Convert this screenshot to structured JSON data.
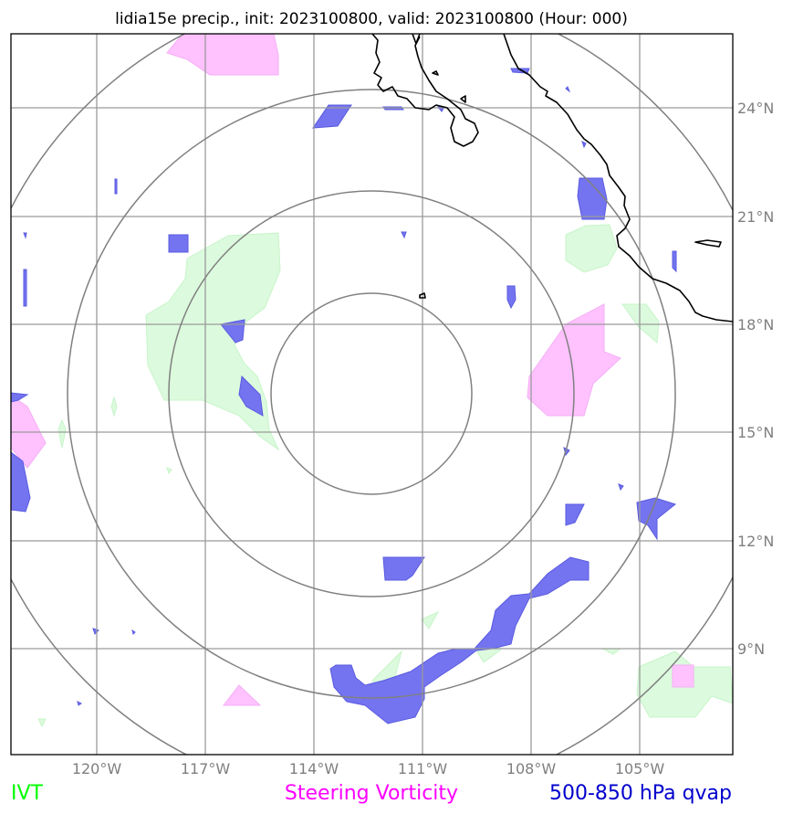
{
  "title": "lidia15e precip., init: 2023100800, valid: 2023100800 (Hour: 000)",
  "axes": {
    "lon_labels": [
      "120°W",
      "117°W",
      "114°W",
      "111°W",
      "108°W",
      "105°W"
    ],
    "lat_labels": [
      "24°N",
      "21°N",
      "18°N",
      "15°N",
      "12°N",
      "9°N"
    ]
  },
  "legend": {
    "ivt": "IVT",
    "steering": "Steering Vorticity",
    "qvap": "500-850 hPa qvap"
  },
  "colors": {
    "ivt": "#00ff00",
    "steering": "#ff00ff",
    "qvap": "#0000cd",
    "ivt_fill": "#dcfadd",
    "steering_fill": "#ffc2ff",
    "qvap_fill": "#7474f0"
  }
}
